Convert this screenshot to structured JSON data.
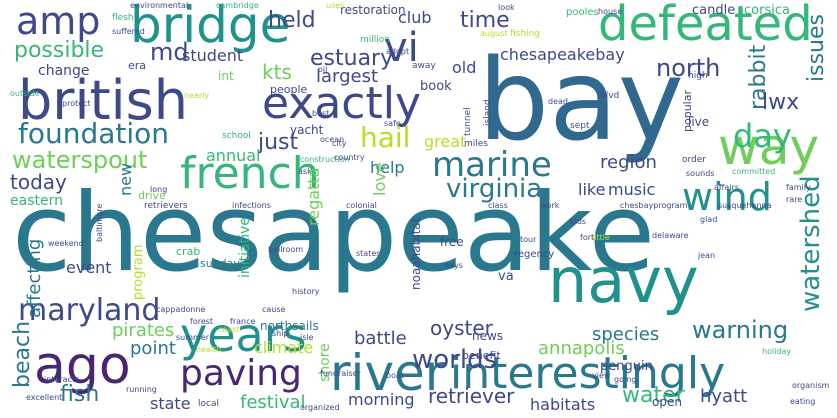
{
  "palette": {
    "dark_purple": "#482575",
    "deep_purple": "#3e4989",
    "blue": "#2a788e",
    "slate": "#31688e",
    "teal": "#21918c",
    "green": "#35b779",
    "light_green": "#6ece58",
    "yellow_green": "#b5de2b",
    "yellow": "#fde725"
  },
  "words": [
    {
      "text": "chesapeake",
      "color": "#2a788e"
    },
    {
      "text": "bay",
      "color": "#31688e"
    },
    {
      "text": "british",
      "color": "#3e4989"
    },
    {
      "text": "bridge",
      "color": "#21918c"
    },
    {
      "text": "defeated",
      "color": "#35b779"
    },
    {
      "text": "exactly",
      "color": "#3e4989"
    },
    {
      "text": "french",
      "color": "#35b779"
    },
    {
      "text": "navy",
      "color": "#21918c"
    },
    {
      "text": "river",
      "color": "#2a788e"
    },
    {
      "text": "interestingly",
      "color": "#2a788e"
    },
    {
      "text": "years",
      "color": "#21918c"
    },
    {
      "text": "ago",
      "color": "#482575"
    },
    {
      "text": "way",
      "color": "#6ece58"
    },
    {
      "text": "amp",
      "color": "#3e4989"
    },
    {
      "text": "vi",
      "color": "#3e4989"
    },
    {
      "text": "foundation",
      "color": "#2a788e"
    },
    {
      "text": "marine",
      "color": "#2a788e"
    },
    {
      "text": "paving",
      "color": "#482575"
    },
    {
      "text": "wind",
      "color": "#21918c"
    },
    {
      "text": "maryland",
      "color": "#3e4989"
    },
    {
      "text": "day",
      "color": "#35b779"
    },
    {
      "text": "watershed",
      "color": "#21918c"
    },
    {
      "text": "warning",
      "color": "#2a788e"
    },
    {
      "text": "worlds",
      "color": "#3e4989"
    },
    {
      "text": "hail",
      "color": "#b5de2b"
    },
    {
      "text": "waterspout",
      "color": "#6ece58"
    },
    {
      "text": "virginia",
      "color": "#2a788e"
    },
    {
      "text": "north",
      "color": "#3e4989"
    },
    {
      "text": "estuary",
      "color": "#3e4989"
    },
    {
      "text": "possible",
      "color": "#35b779"
    },
    {
      "text": "md",
      "color": "#3e4989"
    },
    {
      "text": "held",
      "color": "#3e4989"
    },
    {
      "text": "time",
      "color": "#3e4989"
    },
    {
      "text": "rabbit",
      "color": "#2a788e"
    },
    {
      "text": "issues",
      "color": "#2a788e"
    },
    {
      "text": "lwx",
      "color": "#3e4989"
    },
    {
      "text": "chesapeakebay",
      "color": "#3e4989"
    },
    {
      "text": "largest",
      "color": "#3e4989"
    },
    {
      "text": "kts",
      "color": "#6ece58"
    },
    {
      "text": "student",
      "color": "#3e4989"
    },
    {
      "text": "club",
      "color": "#3e4989"
    },
    {
      "text": "old",
      "color": "#3e4989"
    },
    {
      "text": "just",
      "color": "#3e4989"
    },
    {
      "text": "today",
      "color": "#3e4989"
    },
    {
      "text": "region",
      "color": "#3e4989"
    },
    {
      "text": "annual",
      "color": "#35b779"
    },
    {
      "text": "regatta",
      "color": "#6ece58"
    },
    {
      "text": "oyster",
      "color": "#3e4989"
    },
    {
      "text": "species",
      "color": "#2a788e"
    },
    {
      "text": "annapolis",
      "color": "#6ece58"
    },
    {
      "text": "retriever",
      "color": "#3e4989"
    },
    {
      "text": "water",
      "color": "#35b779"
    },
    {
      "text": "hyatt",
      "color": "#3e4989"
    },
    {
      "text": "fish",
      "color": "#2a788e"
    },
    {
      "text": "state",
      "color": "#3e4989"
    },
    {
      "text": "festival",
      "color": "#35b779"
    },
    {
      "text": "morning",
      "color": "#3e4989"
    },
    {
      "text": "habitats",
      "color": "#3e4989"
    },
    {
      "text": "pirates",
      "color": "#6ece58"
    },
    {
      "text": "beach",
      "color": "#2a788e"
    },
    {
      "text": "battle",
      "color": "#3e4989"
    },
    {
      "text": "point",
      "color": "#2a788e"
    },
    {
      "text": "climate",
      "color": "#b5de2b"
    },
    {
      "text": "affecting",
      "color": "#2a788e"
    },
    {
      "text": "event",
      "color": "#3e4989"
    },
    {
      "text": "help",
      "color": "#2a788e"
    },
    {
      "text": "great",
      "color": "#b5de2b"
    },
    {
      "text": "love",
      "color": "#6ece58"
    },
    {
      "text": "new",
      "color": "#2a788e"
    },
    {
      "text": "like",
      "color": "#3e4989"
    },
    {
      "text": "music",
      "color": "#3e4989"
    },
    {
      "text": "eastern",
      "color": "#35b779"
    },
    {
      "text": "change",
      "color": "#3e4989"
    },
    {
      "text": "candle",
      "color": "#3e4989"
    },
    {
      "text": "corsica",
      "color": "#35b779"
    },
    {
      "text": "restoration",
      "color": "#3e4989"
    },
    {
      "text": "book",
      "color": "#3e4989"
    },
    {
      "text": "initiative",
      "color": "#35b779"
    },
    {
      "text": "program",
      "color": "#b5de2b"
    },
    {
      "text": "noaahabitat",
      "color": "#3e4989"
    },
    {
      "text": "free",
      "color": "#3e4989"
    },
    {
      "text": "va",
      "color": "#3e4989"
    },
    {
      "text": "shore",
      "color": "#6ece58"
    },
    {
      "text": "northsails",
      "color": "#2a788e"
    },
    {
      "text": "penguin",
      "color": "#3e4989"
    },
    {
      "text": "news",
      "color": "#3e4989"
    },
    {
      "text": "benefit",
      "color": "#3e4989"
    },
    {
      "text": "open",
      "color": "#3e4989"
    },
    {
      "text": "live",
      "color": "#3e4989"
    },
    {
      "text": "popular",
      "color": "#3e4989"
    },
    {
      "text": "yacht",
      "color": "#3e4989"
    },
    {
      "text": "int",
      "color": "#6ece58"
    },
    {
      "text": "era",
      "color": "#3e4989"
    },
    {
      "text": "people",
      "color": "#3e4989"
    },
    {
      "text": "sunday",
      "color": "#2a788e"
    },
    {
      "text": "crab",
      "color": "#35b779"
    },
    {
      "text": "drive",
      "color": "#6ece58"
    },
    {
      "text": "regency",
      "color": "#3e4989"
    },
    {
      "text": "flesh",
      "color": "#35b779"
    },
    {
      "text": "pooles",
      "color": "#35b779"
    },
    {
      "text": "fishing",
      "color": "#b5de2b"
    },
    {
      "text": "million",
      "color": "#35b779"
    },
    {
      "text": "away",
      "color": "#3e4989"
    },
    {
      "text": "miles",
      "color": "#3e4989"
    },
    {
      "text": "order",
      "color": "#3e4989"
    },
    {
      "text": "sept",
      "color": "#3e4989"
    },
    {
      "text": "school",
      "color": "#35b779"
    },
    {
      "text": "construction",
      "color": "#35b779"
    },
    {
      "text": "country",
      "color": "#3e4989"
    },
    {
      "text": "high",
      "color": "#3e4989"
    },
    {
      "text": "blvd",
      "color": "#3e4989"
    },
    {
      "text": "tunnel",
      "color": "#3e4989"
    },
    {
      "text": "island",
      "color": "#3e4989"
    },
    {
      "text": "dead",
      "color": "#3e4989"
    },
    {
      "text": "environmental",
      "color": "#3e4989"
    },
    {
      "text": "suffered",
      "color": "#3e4989"
    },
    {
      "text": "cambridge",
      "color": "#35b779"
    },
    {
      "text": "house",
      "color": "#3e4989"
    },
    {
      "text": "uses",
      "color": "#b5de2b"
    },
    {
      "text": "look",
      "color": "#3e4989"
    },
    {
      "text": "august",
      "color": "#b5de2b"
    },
    {
      "text": "adopt",
      "color": "#3e4989"
    },
    {
      "text": "protect",
      "color": "#3e4989"
    },
    {
      "text": "ocean",
      "color": "#3e4989"
    },
    {
      "text": "city",
      "color": "#3e4989"
    },
    {
      "text": "retrievers",
      "color": "#3e4989"
    },
    {
      "text": "long",
      "color": "#3e4989"
    },
    {
      "text": "baltimore",
      "color": "#3e4989"
    },
    {
      "text": "infections",
      "color": "#3e4989"
    },
    {
      "text": "colonial",
      "color": "#3e4989"
    },
    {
      "text": "chesbayprogram",
      "color": "#3e4989"
    },
    {
      "text": "susquehanna",
      "color": "#3e4989"
    },
    {
      "text": "states",
      "color": "#3e4989"
    },
    {
      "text": "weekend",
      "color": "#3e4989"
    },
    {
      "text": "tour",
      "color": "#3e4989"
    },
    {
      "text": "days",
      "color": "#3e4989"
    },
    {
      "text": "family",
      "color": "#3e4989"
    },
    {
      "text": "rare",
      "color": "#3e4989"
    },
    {
      "text": "glad",
      "color": "#3e4989"
    },
    {
      "text": "kids",
      "color": "#3e4989"
    },
    {
      "text": "holiday",
      "color": "#35b779"
    },
    {
      "text": "organism",
      "color": "#3e4989"
    },
    {
      "text": "eating",
      "color": "#3e4989"
    },
    {
      "text": "view",
      "color": "#3e4989"
    },
    {
      "text": "going",
      "color": "#3e4989"
    },
    {
      "text": "excellent",
      "color": "#3e4989"
    },
    {
      "text": "running",
      "color": "#3e4989"
    },
    {
      "text": "local",
      "color": "#3e4989"
    },
    {
      "text": "organized",
      "color": "#3e4989"
    },
    {
      "text": "interacts",
      "color": "#3e4989"
    },
    {
      "text": "fundraiser",
      "color": "#3e4989"
    },
    {
      "text": "boat",
      "color": "#3e4989"
    },
    {
      "text": "health",
      "color": "#b5de2b"
    },
    {
      "text": "coast",
      "color": "#b5de2b"
    },
    {
      "text": "summer",
      "color": "#3e4989"
    },
    {
      "text": "forest",
      "color": "#3e4989"
    },
    {
      "text": "isle",
      "color": "#3e4989"
    },
    {
      "text": "ship",
      "color": "#3e4989"
    },
    {
      "text": "france",
      "color": "#3e4989"
    },
    {
      "text": "cappadonne",
      "color": "#3e4989"
    },
    {
      "text": "cause",
      "color": "#3e4989"
    },
    {
      "text": "history",
      "color": "#3e4989"
    },
    {
      "text": "ballroom",
      "color": "#3e4989"
    },
    {
      "text": "outside",
      "color": "#35b779"
    },
    {
      "text": "nearly",
      "color": "#b5de2b"
    },
    {
      "text": "committed",
      "color": "#35b779"
    },
    {
      "text": "sounds",
      "color": "#3e4989"
    },
    {
      "text": "affairs",
      "color": "#3e4989"
    },
    {
      "text": "jean",
      "color": "#3e4989"
    },
    {
      "text": "delaware",
      "color": "#3e4989"
    },
    {
      "text": "little",
      "color": "#b5de2b"
    },
    {
      "text": "fort",
      "color": "#3e4989"
    },
    {
      "text": "work",
      "color": "#3e4989"
    },
    {
      "text": "class",
      "color": "#3e4989"
    },
    {
      "text": "oil",
      "color": "#3e4989"
    },
    {
      "text": "best",
      "color": "#3e4989"
    },
    {
      "text": "safe",
      "color": "#3e4989"
    },
    {
      "text": "ask",
      "color": "#3e4989"
    }
  ]
}
